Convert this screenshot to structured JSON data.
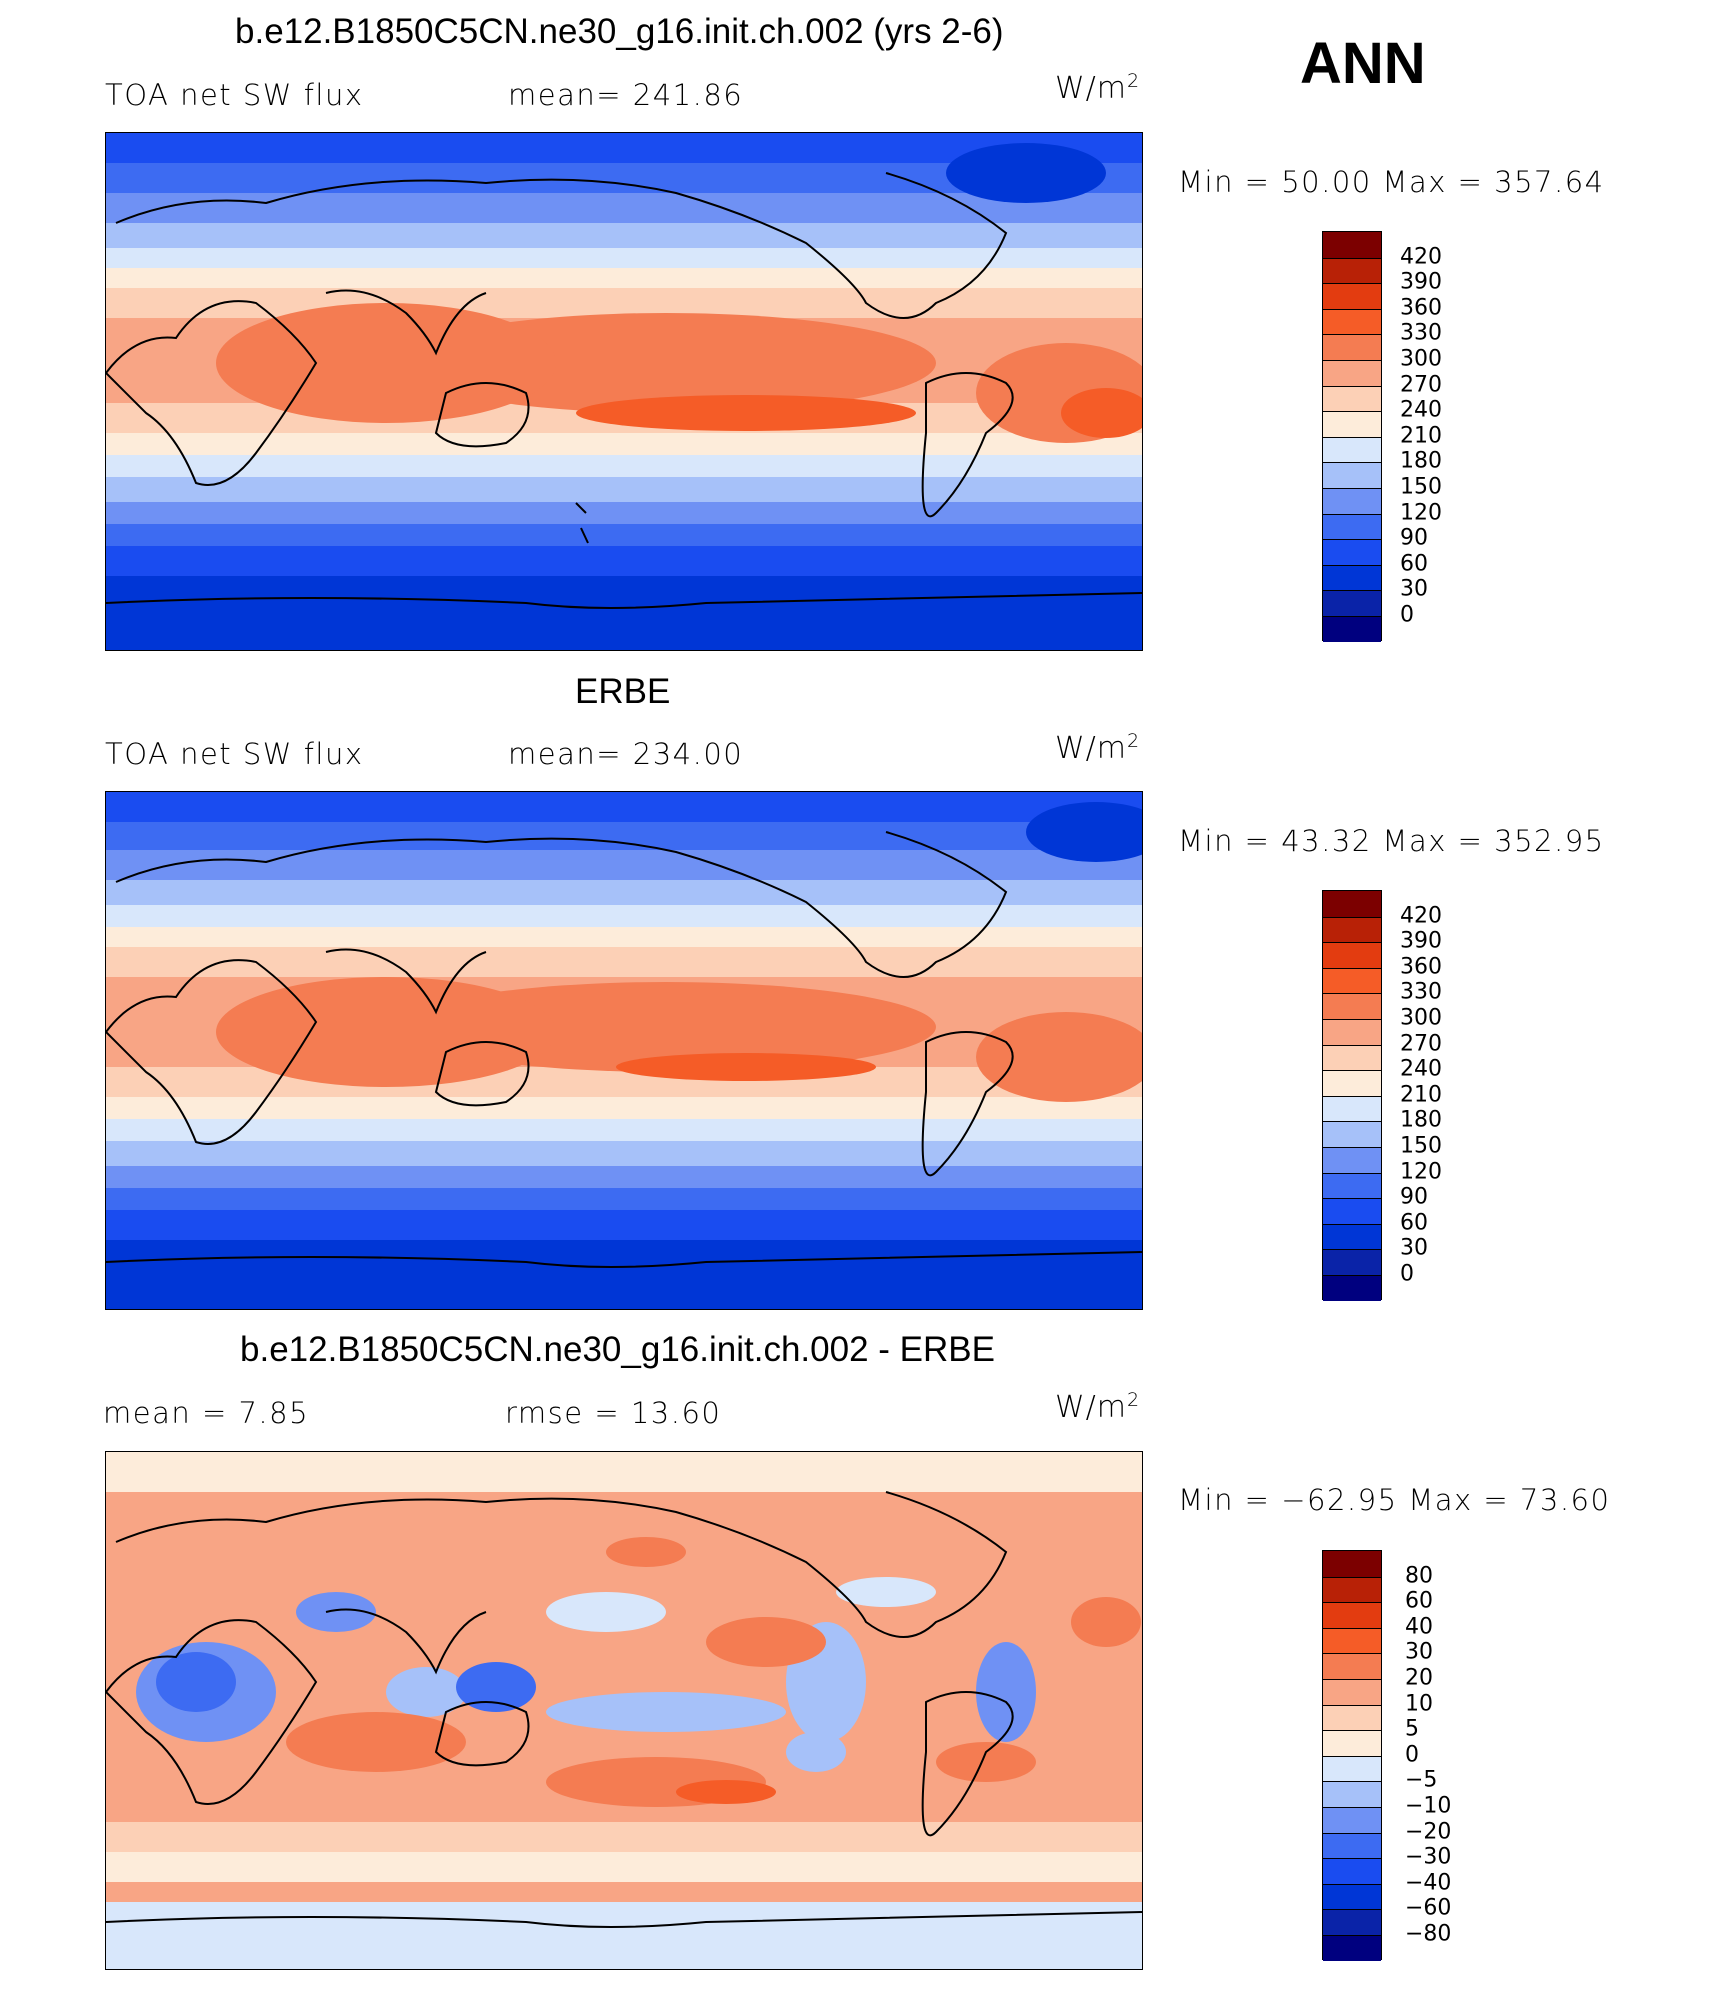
{
  "season": "ANN",
  "colors": {
    "full": [
      "#00007f",
      "#0a23a8",
      "#0036d6",
      "#1a4cf0",
      "#3d6bf2",
      "#6f91f4",
      "#a6c1f9",
      "#d8e7fb",
      "#fdecda",
      "#fcd0b6",
      "#f8a585",
      "#f47c52",
      "#f55c27",
      "#e33c10",
      "#b82106",
      "#7c0000"
    ],
    "diff": [
      "#00007f",
      "#0a23a8",
      "#0036d6",
      "#1a4cf0",
      "#3d6bf2",
      "#6f91f4",
      "#a6c1f9",
      "#d8e7fb",
      "#fdecda",
      "#fcd0b6",
      "#f8a585",
      "#f47c52",
      "#f55c27",
      "#e33c10",
      "#b82106",
      "#7c0000"
    ]
  },
  "panels": [
    {
      "title": "b.e12.B1850C5CN.ne30_g16.init.ch.002 (yrs 2-6)",
      "left_label": "TOA  net  SW  flux",
      "right_label": "mean=  241.86",
      "units": "W/m",
      "units_exp": "2",
      "minmax": "Min  =    50.00  Max  =  357.64",
      "levels": [
        "420",
        "390",
        "360",
        "330",
        "300",
        "270",
        "240",
        "210",
        "180",
        "150",
        "120",
        "90",
        "60",
        "30",
        "0"
      ]
    },
    {
      "title": "ERBE",
      "left_label": "TOA  net  SW  flux",
      "right_label": "mean=  234.00",
      "units": "W/m",
      "units_exp": "2",
      "minmax": "Min  =    43.32  Max  =  352.95",
      "levels": [
        "420",
        "390",
        "360",
        "330",
        "300",
        "270",
        "240",
        "210",
        "180",
        "150",
        "120",
        "90",
        "60",
        "30",
        "0"
      ]
    },
    {
      "title": "b.e12.B1850C5CN.ne30_g16.init.ch.002 - ERBE",
      "left_label": "mean  =      7.85",
      "right_label": "rmse  =    13.60",
      "units": "W/m",
      "units_exp": "2",
      "minmax": "Min  =  −62.95  Max  =    73.60",
      "levels": [
        "80",
        "60",
        "40",
        "30",
        "20",
        "10",
        "5",
        "0",
        "−5",
        "−10",
        "−20",
        "−30",
        "−40",
        "−60",
        "−80"
      ]
    }
  ]
}
